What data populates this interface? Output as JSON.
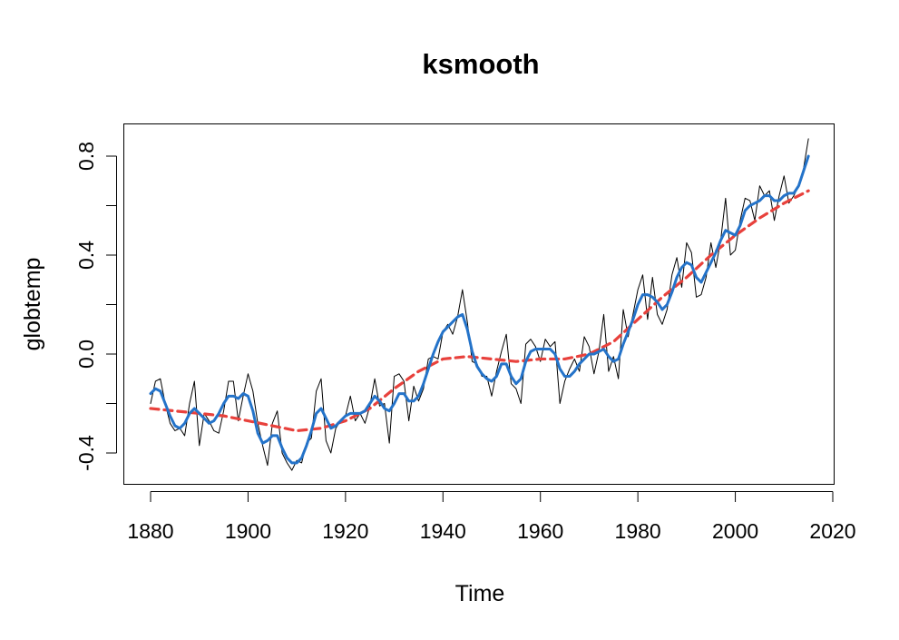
{
  "chart_data": {
    "type": "line",
    "title": "ksmooth",
    "xlabel": "Time",
    "ylabel": "globtemp",
    "xlim": [
      1880,
      2020
    ],
    "ylim": [
      -0.52,
      0.92
    ],
    "x_ticks": [
      "1880",
      "1900",
      "1920",
      "1940",
      "1960",
      "1980",
      "2000",
      "2020"
    ],
    "y_ticks": [
      "-0.4",
      "0.0",
      "0.4",
      "0.8"
    ],
    "grid": false,
    "legend": "none",
    "series": [
      {
        "line_style": "thin solid black",
        "color": "#000000",
        "x": [
          1880,
          1881,
          1882,
          1883,
          1884,
          1885,
          1886,
          1887,
          1888,
          1889,
          1890,
          1891,
          1892,
          1893,
          1894,
          1895,
          1896,
          1897,
          1898,
          1899,
          1900,
          1901,
          1902,
          1903,
          1904,
          1905,
          1906,
          1907,
          1908,
          1909,
          1910,
          1911,
          1912,
          1913,
          1914,
          1915,
          1916,
          1917,
          1918,
          1919,
          1920,
          1921,
          1922,
          1923,
          1924,
          1925,
          1926,
          1927,
          1928,
          1929,
          1930,
          1931,
          1932,
          1933,
          1934,
          1935,
          1936,
          1937,
          1938,
          1939,
          1940,
          1941,
          1942,
          1943,
          1944,
          1945,
          1946,
          1947,
          1948,
          1949,
          1950,
          1951,
          1952,
          1953,
          1954,
          1955,
          1956,
          1957,
          1958,
          1959,
          1960,
          1961,
          1962,
          1963,
          1964,
          1965,
          1966,
          1967,
          1968,
          1969,
          1970,
          1971,
          1972,
          1973,
          1974,
          1975,
          1976,
          1977,
          1978,
          1979,
          1980,
          1981,
          1982,
          1983,
          1984,
          1985,
          1986,
          1987,
          1988,
          1989,
          1990,
          1991,
          1992,
          1993,
          1994,
          1995,
          1996,
          1997,
          1998,
          1999,
          2000,
          2001,
          2002,
          2003,
          2004,
          2005,
          2006,
          2007,
          2008,
          2009,
          2010,
          2011,
          2012,
          2013,
          2014,
          2015
        ],
        "values": [
          -0.2,
          -0.11,
          -0.1,
          -0.2,
          -0.28,
          -0.31,
          -0.3,
          -0.33,
          -0.2,
          -0.11,
          -0.37,
          -0.24,
          -0.27,
          -0.31,
          -0.32,
          -0.23,
          -0.11,
          -0.11,
          -0.27,
          -0.17,
          -0.08,
          -0.15,
          -0.28,
          -0.37,
          -0.45,
          -0.28,
          -0.23,
          -0.4,
          -0.44,
          -0.47,
          -0.43,
          -0.44,
          -0.36,
          -0.34,
          -0.15,
          -0.1,
          -0.35,
          -0.4,
          -0.3,
          -0.27,
          -0.25,
          -0.17,
          -0.27,
          -0.24,
          -0.28,
          -0.21,
          -0.1,
          -0.21,
          -0.2,
          -0.36,
          -0.09,
          -0.08,
          -0.11,
          -0.27,
          -0.13,
          -0.19,
          -0.14,
          -0.02,
          -0.01,
          -0.02,
          0.09,
          0.12,
          0.08,
          0.15,
          0.26,
          0.13,
          -0.03,
          -0.04,
          -0.09,
          -0.09,
          -0.17,
          -0.07,
          0.01,
          0.08,
          -0.12,
          -0.14,
          -0.2,
          0.04,
          0.06,
          0.03,
          -0.03,
          0.06,
          0.03,
          0.05,
          -0.2,
          -0.11,
          -0.06,
          -0.02,
          -0.07,
          0.07,
          0.03,
          -0.08,
          0.01,
          0.16,
          -0.07,
          -0.01,
          -0.1,
          0.18,
          0.07,
          0.16,
          0.26,
          0.32,
          0.14,
          0.31,
          0.16,
          0.12,
          0.18,
          0.32,
          0.39,
          0.27,
          0.45,
          0.41,
          0.23,
          0.24,
          0.31,
          0.45,
          0.35,
          0.46,
          0.63,
          0.4,
          0.42,
          0.54,
          0.63,
          0.62,
          0.54,
          0.68,
          0.64,
          0.66,
          0.54,
          0.64,
          0.72,
          0.61,
          0.64,
          0.68,
          0.75,
          0.87
        ]
      },
      {
        "line_style": "thick solid blue",
        "color": "#2473c9",
        "x": [
          1880,
          1881,
          1882,
          1883,
          1884,
          1885,
          1886,
          1887,
          1888,
          1889,
          1890,
          1891,
          1892,
          1893,
          1894,
          1895,
          1896,
          1897,
          1898,
          1899,
          1900,
          1901,
          1902,
          1903,
          1904,
          1905,
          1906,
          1907,
          1908,
          1909,
          1910,
          1911,
          1912,
          1913,
          1914,
          1915,
          1916,
          1917,
          1918,
          1919,
          1920,
          1921,
          1922,
          1923,
          1924,
          1925,
          1926,
          1927,
          1928,
          1929,
          1930,
          1931,
          1932,
          1933,
          1934,
          1935,
          1936,
          1937,
          1938,
          1939,
          1940,
          1941,
          1942,
          1943,
          1944,
          1945,
          1946,
          1947,
          1948,
          1949,
          1950,
          1951,
          1952,
          1953,
          1954,
          1955,
          1956,
          1957,
          1958,
          1959,
          1960,
          1961,
          1962,
          1963,
          1964,
          1965,
          1966,
          1967,
          1968,
          1969,
          1970,
          1971,
          1972,
          1973,
          1974,
          1975,
          1976,
          1977,
          1978,
          1979,
          1980,
          1981,
          1982,
          1983,
          1984,
          1985,
          1986,
          1987,
          1988,
          1989,
          1990,
          1991,
          1992,
          1993,
          1994,
          1995,
          1996,
          1997,
          1998,
          1999,
          2000,
          2001,
          2002,
          2003,
          2004,
          2005,
          2006,
          2007,
          2008,
          2009,
          2010,
          2011,
          2012,
          2013,
          2014,
          2015
        ],
        "values": [
          -0.16,
          -0.14,
          -0.15,
          -0.2,
          -0.25,
          -0.29,
          -0.3,
          -0.28,
          -0.24,
          -0.22,
          -0.24,
          -0.26,
          -0.28,
          -0.27,
          -0.24,
          -0.2,
          -0.17,
          -0.17,
          -0.18,
          -0.16,
          -0.17,
          -0.23,
          -0.32,
          -0.36,
          -0.35,
          -0.33,
          -0.33,
          -0.38,
          -0.42,
          -0.44,
          -0.44,
          -0.42,
          -0.37,
          -0.31,
          -0.24,
          -0.22,
          -0.26,
          -0.3,
          -0.29,
          -0.27,
          -0.25,
          -0.24,
          -0.24,
          -0.24,
          -0.23,
          -0.2,
          -0.17,
          -0.19,
          -0.22,
          -0.23,
          -0.2,
          -0.16,
          -0.16,
          -0.19,
          -0.19,
          -0.17,
          -0.12,
          -0.06,
          0.0,
          0.05,
          0.09,
          0.11,
          0.13,
          0.15,
          0.16,
          0.1,
          0.01,
          -0.05,
          -0.08,
          -0.1,
          -0.11,
          -0.09,
          -0.04,
          -0.04,
          -0.09,
          -0.12,
          -0.1,
          -0.03,
          0.01,
          0.02,
          0.02,
          0.02,
          0.02,
          0.0,
          -0.06,
          -0.09,
          -0.09,
          -0.07,
          -0.04,
          -0.02,
          0.0,
          0.0,
          0.01,
          0.02,
          -0.01,
          -0.03,
          -0.02,
          0.04,
          0.09,
          0.14,
          0.2,
          0.24,
          0.24,
          0.23,
          0.21,
          0.18,
          0.2,
          0.25,
          0.31,
          0.35,
          0.37,
          0.36,
          0.31,
          0.29,
          0.33,
          0.37,
          0.41,
          0.46,
          0.5,
          0.49,
          0.48,
          0.52,
          0.58,
          0.6,
          0.61,
          0.62,
          0.64,
          0.64,
          0.62,
          0.62,
          0.64,
          0.65,
          0.65,
          0.68,
          0.74,
          0.8
        ]
      },
      {
        "line_style": "thick dashed red",
        "color": "#e8413c",
        "x": [
          1880,
          1885,
          1890,
          1895,
          1900,
          1905,
          1910,
          1915,
          1920,
          1925,
          1930,
          1935,
          1940,
          1945,
          1950,
          1955,
          1960,
          1965,
          1970,
          1975,
          1980,
          1985,
          1990,
          1995,
          2000,
          2005,
          2010,
          2015
        ],
        "values": [
          -0.22,
          -0.23,
          -0.24,
          -0.25,
          -0.27,
          -0.29,
          -0.31,
          -0.3,
          -0.27,
          -0.22,
          -0.14,
          -0.07,
          -0.02,
          -0.01,
          -0.02,
          -0.03,
          -0.02,
          -0.02,
          0.0,
          0.05,
          0.14,
          0.23,
          0.31,
          0.4,
          0.48,
          0.55,
          0.61,
          0.66
        ]
      }
    ]
  }
}
